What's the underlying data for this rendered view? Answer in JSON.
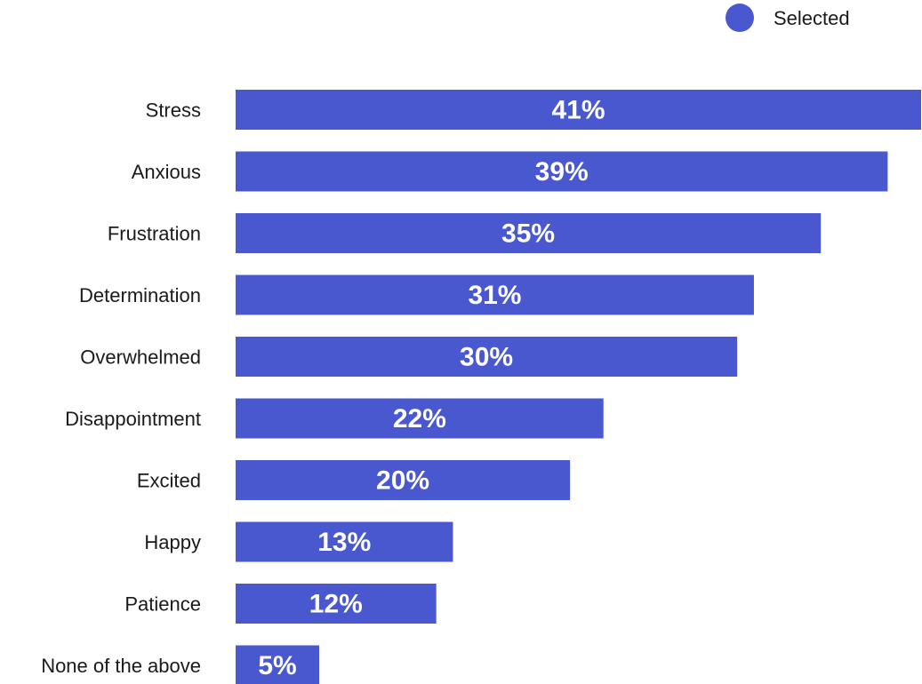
{
  "chart_data": {
    "type": "bar",
    "orientation": "horizontal",
    "categories": [
      "Stress",
      "Anxious",
      "Frustration",
      "Determination",
      "Overwhelmed",
      "Disappointment",
      "Excited",
      "Happy",
      "Patience",
      "None of the above"
    ],
    "series": [
      {
        "name": "Selected",
        "values": [
          41,
          39,
          35,
          31,
          30,
          22,
          20,
          13,
          12,
          5
        ],
        "color": "#4a58d0"
      }
    ],
    "data_labels": [
      "41%",
      "39%",
      "35%",
      "31%",
      "30%",
      "22%",
      "20%",
      "13%",
      "12%",
      "5%"
    ],
    "unit": "%",
    "xlim": [
      0,
      41
    ],
    "grid": false,
    "legend_position": "top-right"
  }
}
